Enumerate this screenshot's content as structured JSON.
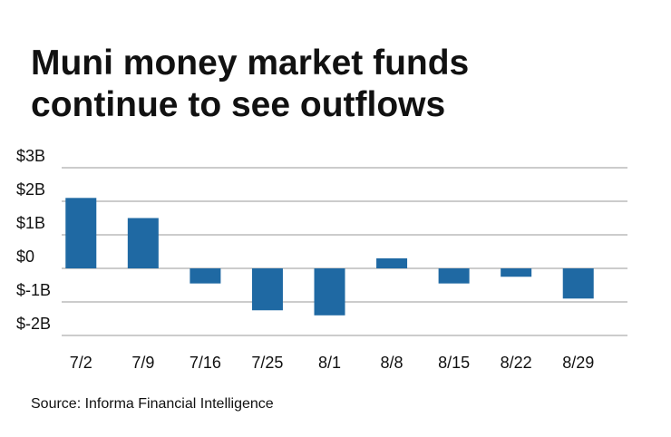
{
  "chart_data": {
    "type": "bar",
    "title": [
      "Muni money market funds",
      "continue to see outflows"
    ],
    "source": "Source: Informa Financial Intelligence",
    "categories": [
      "7/2",
      "7/9",
      "7/16",
      "7/25",
      "8/1",
      "8/8",
      "8/15",
      "8/22",
      "8/29"
    ],
    "values": [
      2.1,
      1.5,
      -0.45,
      -1.25,
      -1.4,
      0.3,
      -0.45,
      -0.25,
      -0.9
    ],
    "color": "#1f69a3",
    "ylim": [
      -2,
      3
    ],
    "yticks": [
      {
        "value": 3,
        "label": "$3B"
      },
      {
        "value": 2,
        "label": "$2B"
      },
      {
        "value": 1,
        "label": "$1B"
      },
      {
        "value": 0,
        "label": "$0"
      },
      {
        "value": -1,
        "label": "$-1B"
      },
      {
        "value": -2,
        "label": "$-2B"
      }
    ],
    "grid": true
  }
}
